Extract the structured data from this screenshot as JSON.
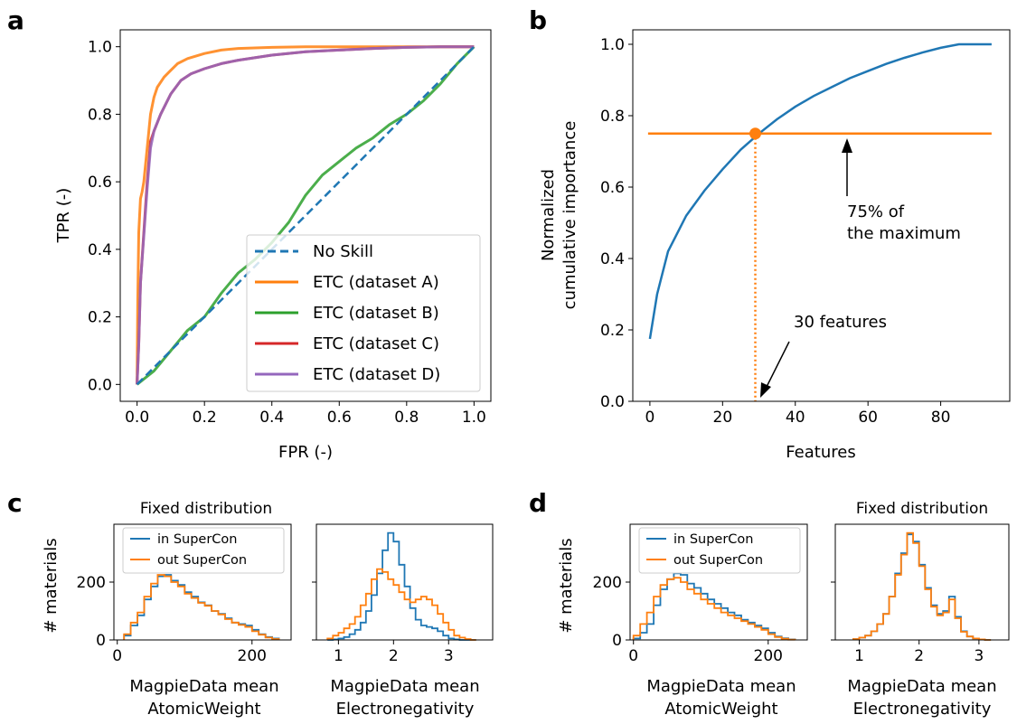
{
  "colors": {
    "blue": "#1f77b4",
    "orange": "#ff7f0e",
    "green": "#2ca02c",
    "red": "#d62728",
    "purple": "#9467bd"
  },
  "panel_labels": [
    "a",
    "b",
    "c",
    "d"
  ],
  "chart_data": [
    {
      "type": "line",
      "panel": "a",
      "xlabel": "FPR (-)",
      "ylabel": "TPR (-)",
      "xlim": [
        -0.05,
        1.05
      ],
      "ylim": [
        -0.05,
        1.05
      ],
      "xticks": [
        "0.0",
        "0.2",
        "0.4",
        "0.6",
        "0.8",
        "1.0"
      ],
      "yticks": [
        "0.0",
        "0.2",
        "0.4",
        "0.6",
        "0.8",
        "1.0"
      ],
      "legend_position": "lower-right",
      "series": [
        {
          "name": "No Skill",
          "color": "#1f77b4",
          "dashed": true,
          "x": [
            0,
            1
          ],
          "y": [
            0,
            1
          ]
        },
        {
          "name": "ETC (dataset A)",
          "color": "#ff7f0e",
          "x": [
            0,
            0.002,
            0.005,
            0.01,
            0.015,
            0.02,
            0.03,
            0.04,
            0.05,
            0.06,
            0.08,
            0.1,
            0.12,
            0.15,
            0.2,
            0.25,
            0.3,
            0.4,
            0.5,
            0.6,
            0.8,
            1.0
          ],
          "y": [
            0,
            0.25,
            0.45,
            0.55,
            0.57,
            0.6,
            0.7,
            0.8,
            0.85,
            0.88,
            0.91,
            0.93,
            0.95,
            0.965,
            0.98,
            0.99,
            0.995,
            0.998,
            1.0,
            1.0,
            1.0,
            1.0
          ]
        },
        {
          "name": "ETC (dataset B)",
          "color": "#2ca02c",
          "x": [
            0,
            0.05,
            0.1,
            0.15,
            0.2,
            0.25,
            0.3,
            0.35,
            0.4,
            0.45,
            0.5,
            0.55,
            0.6,
            0.65,
            0.7,
            0.75,
            0.8,
            0.85,
            0.9,
            0.95,
            1.0
          ],
          "y": [
            0,
            0.04,
            0.1,
            0.16,
            0.2,
            0.27,
            0.33,
            0.37,
            0.42,
            0.48,
            0.56,
            0.62,
            0.66,
            0.7,
            0.73,
            0.77,
            0.8,
            0.84,
            0.89,
            0.95,
            1.0
          ]
        },
        {
          "name": "ETC (dataset C)",
          "color": "#d62728",
          "x": [
            0,
            0.005,
            0.01,
            0.02,
            0.03,
            0.04,
            0.05,
            0.07,
            0.1,
            0.13,
            0.16,
            0.2,
            0.25,
            0.3,
            0.4,
            0.5,
            0.6,
            0.7,
            0.8,
            0.9,
            1.0
          ],
          "y": [
            0,
            0.12,
            0.3,
            0.45,
            0.6,
            0.72,
            0.75,
            0.8,
            0.86,
            0.9,
            0.92,
            0.935,
            0.95,
            0.96,
            0.975,
            0.985,
            0.99,
            0.995,
            0.998,
            1.0,
            1.0
          ]
        },
        {
          "name": "ETC (dataset D)",
          "color": "#9467bd",
          "x": [
            0,
            0.005,
            0.01,
            0.02,
            0.03,
            0.04,
            0.05,
            0.07,
            0.1,
            0.13,
            0.16,
            0.2,
            0.25,
            0.3,
            0.4,
            0.5,
            0.6,
            0.7,
            0.8,
            0.9,
            1.0
          ],
          "y": [
            0,
            0.12,
            0.3,
            0.44,
            0.58,
            0.7,
            0.75,
            0.8,
            0.86,
            0.9,
            0.92,
            0.935,
            0.95,
            0.96,
            0.975,
            0.985,
            0.99,
            0.995,
            0.998,
            1.0,
            1.0
          ]
        }
      ]
    },
    {
      "type": "line",
      "panel": "b",
      "xlabel": "Features",
      "ylabel_lines": [
        "Normalized",
        "cumulative importance"
      ],
      "xlim": [
        -4.7,
        99
      ],
      "ylim": [
        0,
        1.0
      ],
      "xticks": [
        "0",
        "20",
        "40",
        "60",
        "80"
      ],
      "yticks": [
        "0.0",
        "0.2",
        "0.4",
        "0.6",
        "0.8",
        "1.0"
      ],
      "series": [
        {
          "name": "cumulative",
          "color": "#1f77b4",
          "x": [
            0,
            2,
            5,
            10,
            15,
            20,
            25,
            30,
            35,
            40,
            45,
            50,
            55,
            60,
            65,
            70,
            75,
            80,
            85,
            90,
            94
          ],
          "y": [
            0.175,
            0.3,
            0.42,
            0.52,
            0.59,
            0.65,
            0.705,
            0.75,
            0.79,
            0.825,
            0.855,
            0.88,
            0.905,
            0.925,
            0.945,
            0.962,
            0.977,
            0.99,
            1.0,
            1.0,
            1.0
          ]
        }
      ],
      "threshold_y": 0.75,
      "threshold_x_range": [
        -0.5,
        94
      ],
      "crossing": {
        "x": 29,
        "y": 0.75
      },
      "annotations": [
        {
          "lines": [
            "75% of",
            "the maximum"
          ]
        },
        {
          "lines": [
            "30 features"
          ]
        }
      ]
    },
    {
      "type": "histogram",
      "panel": "c",
      "ylabel": "# materials",
      "title": "Fixed distribution",
      "legend": [
        "in SuperCon",
        "out SuperCon"
      ],
      "yticks": [
        "0",
        "200"
      ],
      "subplots": [
        {
          "xlabel_lines": [
            "MagpieData mean",
            "AtomicWeight"
          ],
          "xlim": [
            -5,
            258
          ],
          "ylim": [
            0,
            400
          ],
          "xticks": [
            "0",
            "200"
          ],
          "edges": [
            10,
            20,
            30,
            40,
            50,
            60,
            70,
            80,
            90,
            100,
            110,
            120,
            130,
            140,
            150,
            160,
            170,
            180,
            190,
            200,
            210,
            220,
            230,
            240
          ],
          "series": [
            {
              "name": "in SuperCon",
              "color": "#1f77b4",
              "counts": [
                15,
                50,
                85,
                140,
                185,
                220,
                225,
                205,
                190,
                165,
                150,
                130,
                120,
                100,
                90,
                75,
                60,
                55,
                50,
                35,
                20,
                10,
                5
              ]
            },
            {
              "name": "out SuperCon",
              "color": "#ff7f0e",
              "counts": [
                20,
                60,
                95,
                150,
                195,
                225,
                220,
                200,
                185,
                160,
                145,
                128,
                118,
                100,
                88,
                72,
                60,
                52,
                45,
                30,
                18,
                8,
                3
              ]
            }
          ]
        },
        {
          "xlabel_lines": [
            "MagpieData mean",
            "Electronegativity"
          ],
          "xlim": [
            0.6,
            3.8
          ],
          "ylim": [
            0,
            400
          ],
          "xticks": [
            "1",
            "2",
            "3"
          ],
          "edges": [
            0.8,
            0.9,
            1.0,
            1.1,
            1.2,
            1.3,
            1.4,
            1.5,
            1.6,
            1.7,
            1.8,
            1.9,
            2.0,
            2.1,
            2.2,
            2.3,
            2.4,
            2.5,
            2.6,
            2.7,
            2.8,
            2.9,
            3.0,
            3.1,
            3.2,
            3.3,
            3.4,
            3.5
          ],
          "series": [
            {
              "name": "in SuperCon",
              "color": "#1f77b4",
              "counts": [
                0,
                2,
                5,
                10,
                20,
                35,
                60,
                100,
                155,
                230,
                310,
                370,
                340,
                260,
                185,
                110,
                70,
                50,
                45,
                40,
                30,
                15,
                5,
                2,
                0,
                0,
                0
              ]
            },
            {
              "name": "out SuperCon",
              "color": "#ff7f0e",
              "counts": [
                5,
                15,
                25,
                40,
                55,
                80,
                120,
                160,
                210,
                245,
                235,
                210,
                190,
                165,
                140,
                130,
                140,
                150,
                140,
                120,
                90,
                60,
                35,
                15,
                8,
                3,
                0
              ]
            }
          ]
        }
      ]
    },
    {
      "type": "histogram",
      "panel": "d",
      "ylabel": "# materials",
      "title": "Fixed distribution",
      "legend": [
        "in SuperCon",
        "out SuperCon"
      ],
      "yticks": [
        "0",
        "200"
      ],
      "subplots": [
        {
          "xlabel_lines": [
            "MagpieData mean",
            "AtomicWeight"
          ],
          "xlim": [
            -5,
            258
          ],
          "ylim": [
            0,
            400
          ],
          "xticks": [
            "0",
            "200"
          ],
          "edges": [
            0,
            10,
            20,
            30,
            40,
            50,
            60,
            70,
            80,
            90,
            100,
            110,
            120,
            130,
            140,
            150,
            160,
            170,
            180,
            190,
            200,
            210,
            220,
            230,
            240
          ],
          "series": [
            {
              "name": "in SuperCon",
              "color": "#1f77b4",
              "counts": [
                5,
                25,
                55,
                120,
                175,
                210,
                230,
                225,
                195,
                180,
                160,
                140,
                125,
                110,
                95,
                85,
                70,
                60,
                50,
                40,
                25,
                12,
                6,
                2
              ]
            },
            {
              "name": "out SuperCon",
              "color": "#ff7f0e",
              "counts": [
                15,
                55,
                95,
                150,
                190,
                210,
                215,
                200,
                175,
                160,
                140,
                125,
                110,
                95,
                85,
                75,
                65,
                55,
                45,
                35,
                20,
                10,
                4,
                1
              ]
            }
          ]
        },
        {
          "xlabel_lines": [
            "MagpieData mean",
            "Electronegativity"
          ],
          "xlim": [
            0.6,
            3.5
          ],
          "ylim": [
            0,
            400
          ],
          "xticks": [
            "1",
            "2",
            "3"
          ],
          "edges": [
            0.9,
            1.0,
            1.1,
            1.2,
            1.3,
            1.4,
            1.5,
            1.6,
            1.7,
            1.8,
            1.9,
            2.0,
            2.1,
            2.2,
            2.3,
            2.4,
            2.5,
            2.6,
            2.7,
            2.8,
            2.9,
            3.0,
            3.1,
            3.2
          ],
          "series": [
            {
              "name": "in SuperCon",
              "color": "#1f77b4",
              "counts": [
                3,
                8,
                15,
                30,
                55,
                90,
                150,
                230,
                300,
                365,
                340,
                260,
                180,
                120,
                90,
                100,
                150,
                80,
                30,
                12,
                5,
                2,
                0
              ]
            },
            {
              "name": "out SuperCon",
              "color": "#ff7f0e",
              "counts": [
                3,
                8,
                15,
                30,
                55,
                90,
                150,
                225,
                295,
                370,
                335,
                255,
                175,
                115,
                85,
                95,
                140,
                75,
                28,
                12,
                5,
                2,
                0
              ]
            }
          ]
        }
      ]
    }
  ]
}
